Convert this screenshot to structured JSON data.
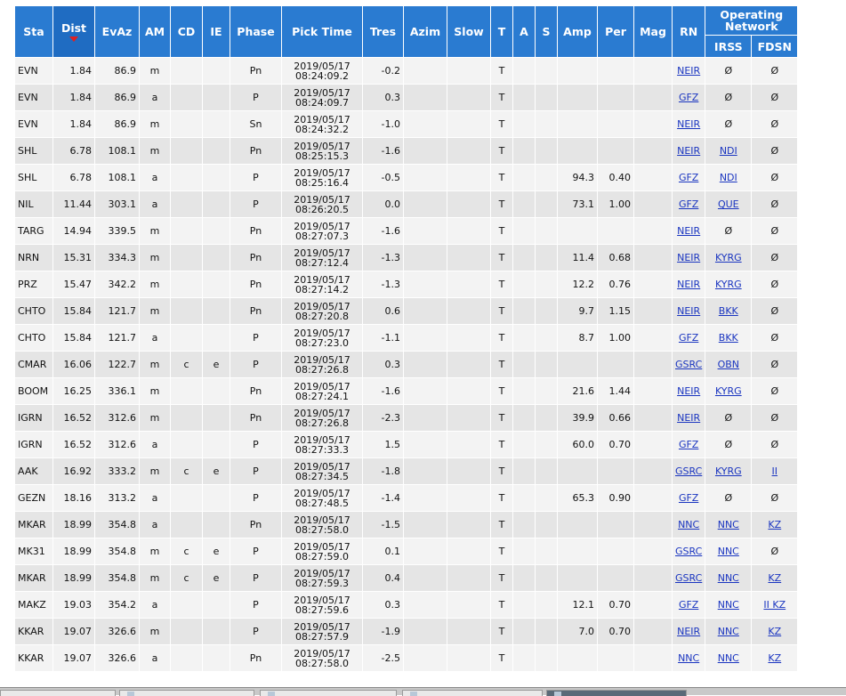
{
  "columns": {
    "sta": "Sta",
    "dist": "Dist",
    "evaz": "EvAz",
    "am": "AM",
    "cd": "CD",
    "ie": "IE",
    "phase": "Phase",
    "pick_time": "Pick Time",
    "tres": "Tres",
    "azim": "Azim",
    "slow": "Slow",
    "t": "T",
    "a": "A",
    "s": "S",
    "amp": "Amp",
    "per": "Per",
    "mag": "Mag",
    "rn": "RN",
    "operating_network": "Operating Network",
    "irss": "IRSS",
    "fdsn": "FDSN"
  },
  "sort": {
    "column": "Dist",
    "direction": "descending-indicator"
  },
  "rows": [
    {
      "sta": "EVN",
      "dist": "1.84",
      "evaz": "86.9",
      "am": "m",
      "cd": "",
      "ie": "",
      "phase": "Pn",
      "date": "2019/05/17",
      "time": "08:24:09.2",
      "tres": "-0.2",
      "azim": "",
      "slow": "",
      "t": "T",
      "a": "",
      "s": "",
      "amp": "",
      "per": "",
      "mag": "",
      "rn": "NEIR",
      "irss": "Ø",
      "fdsn": "Ø"
    },
    {
      "sta": "EVN",
      "dist": "1.84",
      "evaz": "86.9",
      "am": "a",
      "cd": "",
      "ie": "",
      "phase": "P",
      "date": "2019/05/17",
      "time": "08:24:09.7",
      "tres": "0.3",
      "azim": "",
      "slow": "",
      "t": "T",
      "a": "",
      "s": "",
      "amp": "",
      "per": "",
      "mag": "",
      "rn": "GFZ",
      "irss": "Ø",
      "fdsn": "Ø"
    },
    {
      "sta": "EVN",
      "dist": "1.84",
      "evaz": "86.9",
      "am": "m",
      "cd": "",
      "ie": "",
      "phase": "Sn",
      "date": "2019/05/17",
      "time": "08:24:32.2",
      "tres": "-1.0",
      "azim": "",
      "slow": "",
      "t": "T",
      "a": "",
      "s": "",
      "amp": "",
      "per": "",
      "mag": "",
      "rn": "NEIR",
      "irss": "Ø",
      "fdsn": "Ø"
    },
    {
      "sta": "SHL",
      "dist": "6.78",
      "evaz": "108.1",
      "am": "m",
      "cd": "",
      "ie": "",
      "phase": "Pn",
      "date": "2019/05/17",
      "time": "08:25:15.3",
      "tres": "-1.6",
      "azim": "",
      "slow": "",
      "t": "T",
      "a": "",
      "s": "",
      "amp": "",
      "per": "",
      "mag": "",
      "rn": "NEIR",
      "irss": "NDI",
      "fdsn": "Ø"
    },
    {
      "sta": "SHL",
      "dist": "6.78",
      "evaz": "108.1",
      "am": "a",
      "cd": "",
      "ie": "",
      "phase": "P",
      "date": "2019/05/17",
      "time": "08:25:16.4",
      "tres": "-0.5",
      "azim": "",
      "slow": "",
      "t": "T",
      "a": "",
      "s": "",
      "amp": "94.3",
      "per": "0.40",
      "mag": "",
      "rn": "GFZ",
      "irss": "NDI",
      "fdsn": "Ø"
    },
    {
      "sta": "NIL",
      "dist": "11.44",
      "evaz": "303.1",
      "am": "a",
      "cd": "",
      "ie": "",
      "phase": "P",
      "date": "2019/05/17",
      "time": "08:26:20.5",
      "tres": "0.0",
      "azim": "",
      "slow": "",
      "t": "T",
      "a": "",
      "s": "",
      "amp": "73.1",
      "per": "1.00",
      "mag": "",
      "rn": "GFZ",
      "irss": "QUE",
      "fdsn": "Ø"
    },
    {
      "sta": "TARG",
      "dist": "14.94",
      "evaz": "339.5",
      "am": "m",
      "cd": "",
      "ie": "",
      "phase": "Pn",
      "date": "2019/05/17",
      "time": "08:27:07.3",
      "tres": "-1.6",
      "azim": "",
      "slow": "",
      "t": "T",
      "a": "",
      "s": "",
      "amp": "",
      "per": "",
      "mag": "",
      "rn": "NEIR",
      "irss": "Ø",
      "fdsn": "Ø"
    },
    {
      "sta": "NRN",
      "dist": "15.31",
      "evaz": "334.3",
      "am": "m",
      "cd": "",
      "ie": "",
      "phase": "Pn",
      "date": "2019/05/17",
      "time": "08:27:12.4",
      "tres": "-1.3",
      "azim": "",
      "slow": "",
      "t": "T",
      "a": "",
      "s": "",
      "amp": "11.4",
      "per": "0.68",
      "mag": "",
      "rn": "NEIR",
      "irss": "KYRG",
      "fdsn": "Ø"
    },
    {
      "sta": "PRZ",
      "dist": "15.47",
      "evaz": "342.2",
      "am": "m",
      "cd": "",
      "ie": "",
      "phase": "Pn",
      "date": "2019/05/17",
      "time": "08:27:14.2",
      "tres": "-1.3",
      "azim": "",
      "slow": "",
      "t": "T",
      "a": "",
      "s": "",
      "amp": "12.2",
      "per": "0.76",
      "mag": "",
      "rn": "NEIR",
      "irss": "KYRG",
      "fdsn": "Ø"
    },
    {
      "sta": "CHTO",
      "dist": "15.84",
      "evaz": "121.7",
      "am": "m",
      "cd": "",
      "ie": "",
      "phase": "Pn",
      "date": "2019/05/17",
      "time": "08:27:20.8",
      "tres": "0.6",
      "azim": "",
      "slow": "",
      "t": "T",
      "a": "",
      "s": "",
      "amp": "9.7",
      "per": "1.15",
      "mag": "",
      "rn": "NEIR",
      "irss": "BKK",
      "fdsn": "Ø"
    },
    {
      "sta": "CHTO",
      "dist": "15.84",
      "evaz": "121.7",
      "am": "a",
      "cd": "",
      "ie": "",
      "phase": "P",
      "date": "2019/05/17",
      "time": "08:27:23.0",
      "tres": "-1.1",
      "azim": "",
      "slow": "",
      "t": "T",
      "a": "",
      "s": "",
      "amp": "8.7",
      "per": "1.00",
      "mag": "",
      "rn": "GFZ",
      "irss": "BKK",
      "fdsn": "Ø"
    },
    {
      "sta": "CMAR",
      "dist": "16.06",
      "evaz": "122.7",
      "am": "m",
      "cd": "c",
      "ie": "e",
      "phase": "P",
      "date": "2019/05/17",
      "time": "08:27:26.8",
      "tres": "0.3",
      "azim": "",
      "slow": "",
      "t": "T",
      "a": "",
      "s": "",
      "amp": "",
      "per": "",
      "mag": "",
      "rn": "GSRC",
      "irss": "OBN",
      "fdsn": "Ø"
    },
    {
      "sta": "BOOM",
      "dist": "16.25",
      "evaz": "336.1",
      "am": "m",
      "cd": "",
      "ie": "",
      "phase": "Pn",
      "date": "2019/05/17",
      "time": "08:27:24.1",
      "tres": "-1.6",
      "azim": "",
      "slow": "",
      "t": "T",
      "a": "",
      "s": "",
      "amp": "21.6",
      "per": "1.44",
      "mag": "",
      "rn": "NEIR",
      "irss": "KYRG",
      "fdsn": "Ø"
    },
    {
      "sta": "IGRN",
      "dist": "16.52",
      "evaz": "312.6",
      "am": "m",
      "cd": "",
      "ie": "",
      "phase": "Pn",
      "date": "2019/05/17",
      "time": "08:27:26.8",
      "tres": "-2.3",
      "azim": "",
      "slow": "",
      "t": "T",
      "a": "",
      "s": "",
      "amp": "39.9",
      "per": "0.66",
      "mag": "",
      "rn": "NEIR",
      "irss": "Ø",
      "fdsn": "Ø"
    },
    {
      "sta": "IGRN",
      "dist": "16.52",
      "evaz": "312.6",
      "am": "a",
      "cd": "",
      "ie": "",
      "phase": "P",
      "date": "2019/05/17",
      "time": "08:27:33.3",
      "tres": "1.5",
      "azim": "",
      "slow": "",
      "t": "T",
      "a": "",
      "s": "",
      "amp": "60.0",
      "per": "0.70",
      "mag": "",
      "rn": "GFZ",
      "irss": "Ø",
      "fdsn": "Ø"
    },
    {
      "sta": "AAK",
      "dist": "16.92",
      "evaz": "333.2",
      "am": "m",
      "cd": "c",
      "ie": "e",
      "phase": "P",
      "date": "2019/05/17",
      "time": "08:27:34.5",
      "tres": "-1.8",
      "azim": "",
      "slow": "",
      "t": "T",
      "a": "",
      "s": "",
      "amp": "",
      "per": "",
      "mag": "",
      "rn": "GSRC",
      "irss": "KYRG",
      "fdsn": "II"
    },
    {
      "sta": "GEZN",
      "dist": "18.16",
      "evaz": "313.2",
      "am": "a",
      "cd": "",
      "ie": "",
      "phase": "P",
      "date": "2019/05/17",
      "time": "08:27:48.5",
      "tres": "-1.4",
      "azim": "",
      "slow": "",
      "t": "T",
      "a": "",
      "s": "",
      "amp": "65.3",
      "per": "0.90",
      "mag": "",
      "rn": "GFZ",
      "irss": "Ø",
      "fdsn": "Ø"
    },
    {
      "sta": "MKAR",
      "dist": "18.99",
      "evaz": "354.8",
      "am": "a",
      "cd": "",
      "ie": "",
      "phase": "Pn",
      "date": "2019/05/17",
      "time": "08:27:58.0",
      "tres": "-1.5",
      "azim": "",
      "slow": "",
      "t": "T",
      "a": "",
      "s": "",
      "amp": "",
      "per": "",
      "mag": "",
      "rn": "NNC",
      "irss": "NNC",
      "fdsn": "KZ"
    },
    {
      "sta": "MK31",
      "dist": "18.99",
      "evaz": "354.8",
      "am": "m",
      "cd": "c",
      "ie": "e",
      "phase": "P",
      "date": "2019/05/17",
      "time": "08:27:59.0",
      "tres": "0.1",
      "azim": "",
      "slow": "",
      "t": "T",
      "a": "",
      "s": "",
      "amp": "",
      "per": "",
      "mag": "",
      "rn": "GSRC",
      "irss": "NNC",
      "fdsn": "Ø"
    },
    {
      "sta": "MKAR",
      "dist": "18.99",
      "evaz": "354.8",
      "am": "m",
      "cd": "c",
      "ie": "e",
      "phase": "P",
      "date": "2019/05/17",
      "time": "08:27:59.3",
      "tres": "0.4",
      "azim": "",
      "slow": "",
      "t": "T",
      "a": "",
      "s": "",
      "amp": "",
      "per": "",
      "mag": "",
      "rn": "GSRC",
      "irss": "NNC",
      "fdsn": "KZ"
    },
    {
      "sta": "MAKZ",
      "dist": "19.03",
      "evaz": "354.2",
      "am": "a",
      "cd": "",
      "ie": "",
      "phase": "P",
      "date": "2019/05/17",
      "time": "08:27:59.6",
      "tres": "0.3",
      "azim": "",
      "slow": "",
      "t": "T",
      "a": "",
      "s": "",
      "amp": "12.1",
      "per": "0.70",
      "mag": "",
      "rn": "GFZ",
      "irss": "NNC",
      "fdsn": "II KZ"
    },
    {
      "sta": "KKAR",
      "dist": "19.07",
      "evaz": "326.6",
      "am": "m",
      "cd": "",
      "ie": "",
      "phase": "P",
      "date": "2019/05/17",
      "time": "08:27:57.9",
      "tres": "-1.9",
      "azim": "",
      "slow": "",
      "t": "T",
      "a": "",
      "s": "",
      "amp": "7.0",
      "per": "0.70",
      "mag": "",
      "rn": "NEIR",
      "irss": "NNC",
      "fdsn": "KZ"
    },
    {
      "sta": "KKAR",
      "dist": "19.07",
      "evaz": "326.6",
      "am": "a",
      "cd": "",
      "ie": "",
      "phase": "Pn",
      "date": "2019/05/17",
      "time": "08:27:58.0",
      "tres": "-2.5",
      "azim": "",
      "slow": "",
      "t": "T",
      "a": "",
      "s": "",
      "amp": "",
      "per": "",
      "mag": "",
      "rn": "NNC",
      "irss": "NNC",
      "fdsn": "KZ"
    }
  ],
  "link_cells": [
    "rn",
    "irss",
    "fdsn"
  ],
  "no_link_value": "Ø"
}
